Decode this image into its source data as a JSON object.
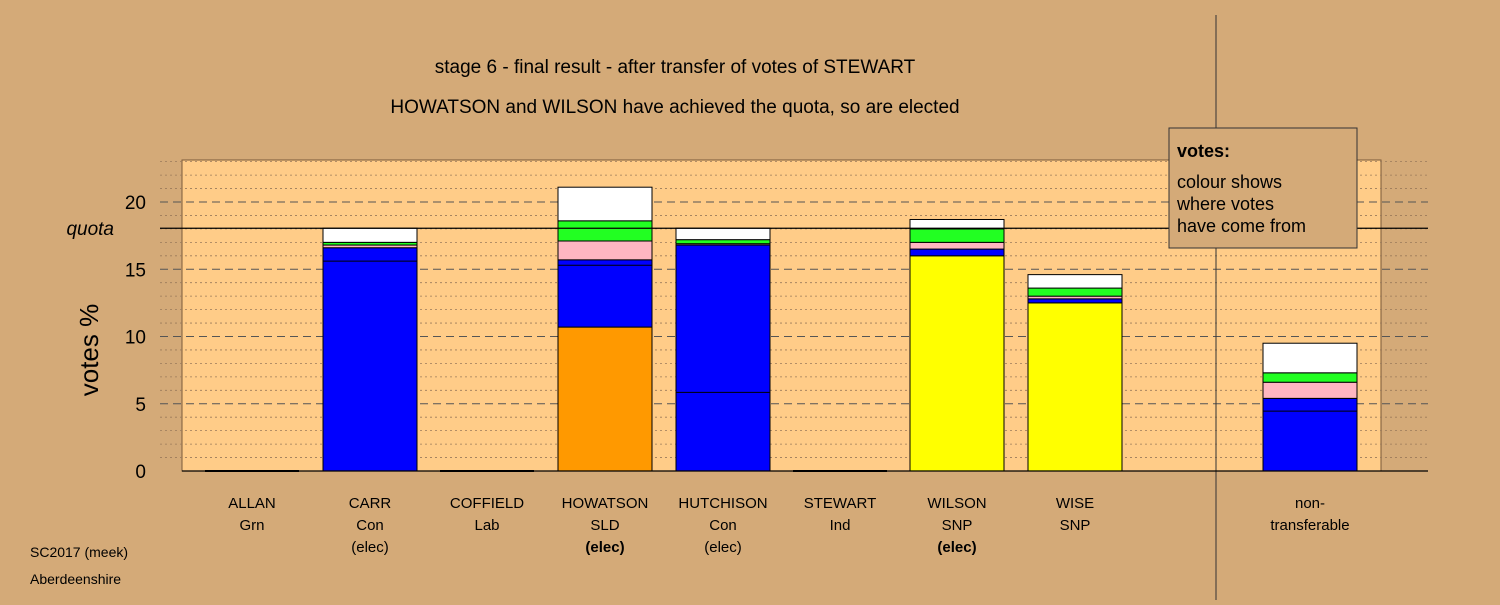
{
  "chart_data": {
    "type": "bar",
    "stacked": true,
    "title": "stage 6 - final result - after transfer of votes of STEWART",
    "subtitle": "HOWATSON and WILSON have achieved the quota, so are elected",
    "ylabel": "votes %",
    "ylim": [
      0,
      23
    ],
    "yticks": [
      0,
      5,
      10,
      15,
      20
    ],
    "quota": 18.05,
    "quota_label": "quota",
    "grid": true,
    "legend": {
      "placement": "top-right",
      "title": "votes:",
      "lines": [
        "colour shows",
        "where votes",
        "have come from"
      ]
    },
    "colors": {
      "SNP": "#ffff00",
      "Con": "#0000ff",
      "SLD": "#ff9900",
      "Lab": "#ffb6c1",
      "Grn": "#22ff22",
      "Ind": "#ffffff",
      "background": "#d4aa78",
      "plot": "#ffcc88"
    },
    "candidates": [
      {
        "name": "ALLAN",
        "party": "Grn",
        "status": "",
        "status_bold": false,
        "segments": []
      },
      {
        "name": "CARR",
        "party": "Con",
        "status": "(elec)",
        "status_bold": false,
        "segments": [
          {
            "source": "Con",
            "value": 16.6
          },
          {
            "source": "Lab",
            "value": 0.2
          },
          {
            "source": "Grn",
            "value": 0.2
          },
          {
            "source": "Ind",
            "value": 1.05
          }
        ],
        "marker_lines": [
          15.6
        ]
      },
      {
        "name": "COFFIELD",
        "party": "Lab",
        "status": "",
        "status_bold": false,
        "segments": []
      },
      {
        "name": "HOWATSON",
        "party": "SLD",
        "status": "(elec)",
        "status_bold": true,
        "segments": [
          {
            "source": "SLD",
            "value": 10.7
          },
          {
            "source": "Con",
            "value": 5.0
          },
          {
            "source": "Lab",
            "value": 1.4
          },
          {
            "source": "Grn",
            "value": 1.5
          },
          {
            "source": "Ind",
            "value": 2.5
          }
        ],
        "marker_lines": [
          15.3
        ]
      },
      {
        "name": "HUTCHISON",
        "party": "Con",
        "status": "(elec)",
        "status_bold": false,
        "segments": [
          {
            "source": "Con",
            "value": 16.8
          },
          {
            "source": "Lab",
            "value": 0.1
          },
          {
            "source": "Grn",
            "value": 0.3
          },
          {
            "source": "Ind",
            "value": 0.85
          }
        ],
        "marker_lines": [
          5.85
        ]
      },
      {
        "name": "STEWART",
        "party": "Ind",
        "status": "",
        "status_bold": false,
        "segments": []
      },
      {
        "name": "WILSON",
        "party": "SNP",
        "status": "(elec)",
        "status_bold": true,
        "segments": [
          {
            "source": "SNP",
            "value": 16.0
          },
          {
            "source": "Con",
            "value": 0.5
          },
          {
            "source": "Lab",
            "value": 0.5
          },
          {
            "source": "Grn",
            "value": 1.0
          },
          {
            "source": "Ind",
            "value": 0.7
          }
        ]
      },
      {
        "name": "WISE",
        "party": "SNP",
        "status": "",
        "status_bold": false,
        "segments": [
          {
            "source": "SNP",
            "value": 12.5
          },
          {
            "source": "Con",
            "value": 0.3
          },
          {
            "source": "Lab",
            "value": 0.2
          },
          {
            "source": "Grn",
            "value": 0.6
          },
          {
            "source": "Ind",
            "value": 1.0
          }
        ]
      },
      {
        "name": "non-\ntransferable",
        "party": "",
        "status": "",
        "status_bold": false,
        "separated": true,
        "segments": [
          {
            "source": "Con",
            "value": 5.4
          },
          {
            "source": "Lab",
            "value": 1.2
          },
          {
            "source": "Grn",
            "value": 0.7
          },
          {
            "source": "Ind",
            "value": 2.2
          }
        ],
        "marker_lines": [
          4.45
        ]
      }
    ]
  },
  "footer": {
    "line1": "SC2017 (meek)",
    "line2": "Aberdeenshire"
  }
}
